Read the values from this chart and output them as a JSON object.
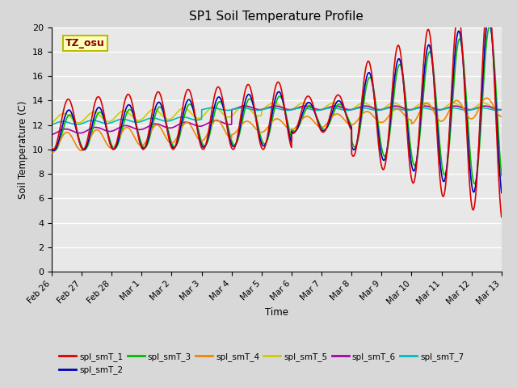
{
  "title": "SP1 Soil Temperature Profile",
  "xlabel": "Time",
  "ylabel": "Soil Temperature (C)",
  "ylim": [
    0,
    20
  ],
  "background_color": "#e8e8e8",
  "grid_color": "#ffffff",
  "fig_bg": "#d8d8d8",
  "annotation_text": "TZ_osu",
  "annotation_color": "#880000",
  "annotation_bg": "#ffffbb",
  "annotation_border": "#bbbb00",
  "series_colors": {
    "spl_smT_1": "#dd0000",
    "spl_smT_2": "#0000bb",
    "spl_smT_3": "#00bb00",
    "spl_smT_4": "#ee8800",
    "spl_smT_5": "#cccc00",
    "spl_smT_6": "#aa00aa",
    "spl_smT_7": "#00bbbb"
  },
  "tick_labels": [
    "Feb 26",
    "Feb 27",
    "Feb 28",
    "Mar 1",
    "Mar 2",
    "Mar 3",
    "Mar 4",
    "Mar 5",
    "Mar 6",
    "Mar 7",
    "Mar 8",
    "Mar 9",
    "Mar 10",
    "Mar 11",
    "Mar 12",
    "Mar 13"
  ],
  "tick_positions": [
    0,
    1,
    2,
    3,
    4,
    5,
    6,
    7,
    8,
    9,
    10,
    11,
    12,
    13,
    14,
    15
  ]
}
